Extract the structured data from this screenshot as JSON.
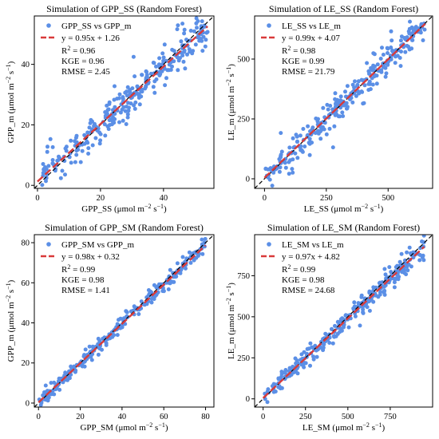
{
  "colors": {
    "point": "#5b8fe6",
    "fit": "#d93a3a",
    "identity": "#000000"
  },
  "chart_data": [
    {
      "type": "scatter",
      "title": "Simulation of GPP_SS (Random Forest)",
      "xlabel": {
        "base": "GPP_SS (μmol m",
        "exp1": "−2",
        "mid": " s",
        "exp2": "−1",
        "end": ")"
      },
      "ylabel": {
        "base": "GPP_m (μmol m",
        "exp1": "−2",
        "mid": " s",
        "exp2": "−1",
        "end": ")"
      },
      "xlim": [
        -1,
        56
      ],
      "ylim": [
        -1,
        56
      ],
      "xticks": [
        0,
        20,
        40
      ],
      "yticks": [
        0,
        20,
        40
      ],
      "legend_points": "GPP_SS vs GPP_m",
      "legend_fit": "y = 0.95x + 1.26",
      "slope": 0.95,
      "intercept": 1.26,
      "r2": "R",
      "r2_exp": "2",
      "r2_val": " = 0.96",
      "kge": "KGE = 0.96",
      "rmse": "RMSE = 2.45",
      "xmax": 54,
      "noise": 3.2,
      "seed": 11
    },
    {
      "type": "scatter",
      "title": "Simulation of LE_SS (Random Forest)",
      "xlabel": {
        "base": "LE_SS (μmol m",
        "exp1": "−2",
        "mid": " s",
        "exp2": "−1",
        "end": ")"
      },
      "ylabel": {
        "base": "LE_m (μmol m",
        "exp1": "−2",
        "mid": " s",
        "exp2": "−1",
        "end": ")"
      },
      "xlim": [
        -40,
        680
      ],
      "ylim": [
        -40,
        680
      ],
      "xticks": [
        0,
        250,
        500
      ],
      "yticks": [
        0,
        250,
        500
      ],
      "legend_points": "LE_SS vs LE_m",
      "legend_fit": "y = 0.99x + 4.07",
      "slope": 0.99,
      "intercept": 4.07,
      "r2": "R",
      "r2_exp": "2",
      "r2_val": " = 0.98",
      "kge": "KGE = 0.99",
      "rmse": "RMSE = 21.79",
      "xmax": 650,
      "noise": 30,
      "seed": 23
    },
    {
      "type": "scatter",
      "title": "Simulation of GPP_SM (Random Forest)",
      "xlabel": {
        "base": "GPP_SM (μmol m",
        "exp1": "−2",
        "mid": " s",
        "exp2": "−1",
        "end": ")"
      },
      "ylabel": {
        "base": "GPP_m (μmol m",
        "exp1": "−2",
        "mid": " s",
        "exp2": "−1",
        "end": ")"
      },
      "xlim": [
        -2,
        84
      ],
      "ylim": [
        -2,
        84
      ],
      "xticks": [
        0,
        20,
        40,
        60,
        80
      ],
      "yticks": [
        0,
        20,
        40,
        60,
        80
      ],
      "legend_points": "GPP_SM vs GPP_m",
      "legend_fit": "y = 0.98x + 0.32",
      "slope": 0.98,
      "intercept": 0.32,
      "r2": "R",
      "r2_exp": "2",
      "r2_val": " = 0.99",
      "kge": "KGE = 0.98",
      "rmse": "RMSE = 1.41",
      "xmax": 80,
      "noise": 1.8,
      "seed": 37
    },
    {
      "type": "scatter",
      "title": "Simulation of LE_SM (Random Forest)",
      "xlabel": {
        "base": "LE_SM (μmol m",
        "exp1": "−2",
        "mid": " s",
        "exp2": "−1",
        "end": ")"
      },
      "ylabel": {
        "base": "LE_m (μmol m",
        "exp1": "−2",
        "mid": " s",
        "exp2": "−1",
        "end": ")"
      },
      "xlim": [
        -50,
        1000
      ],
      "ylim": [
        -50,
        1000
      ],
      "xticks": [
        0,
        250,
        500,
        750
      ],
      "yticks": [
        0,
        250,
        500,
        750
      ],
      "legend_points": "LE_SM vs LE_m",
      "legend_fit": "y = 0.97x + 4.82",
      "slope": 0.97,
      "intercept": 4.82,
      "r2": "R",
      "r2_exp": "2",
      "r2_val": " = 0.99",
      "kge": "KGE = 0.98",
      "rmse": "RMSE = 24.68",
      "xmax": 950,
      "noise": 32,
      "seed": 53
    }
  ]
}
